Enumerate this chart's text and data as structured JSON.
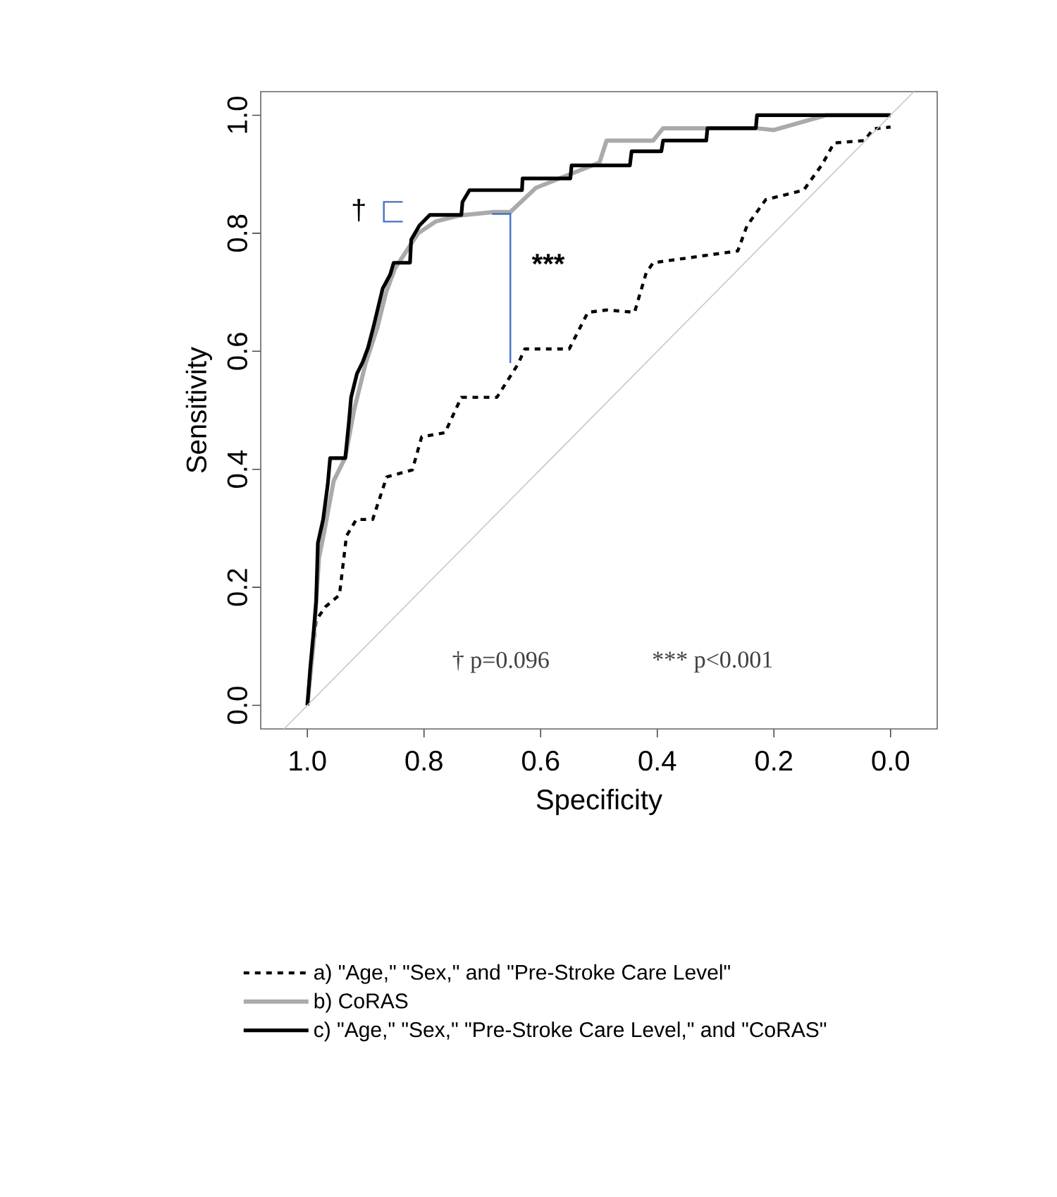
{
  "chart_data": {
    "type": "line",
    "xlabel": "Specificity",
    "ylabel": "Sensitivity",
    "xlim": [
      1.08,
      -0.08
    ],
    "ylim": [
      -0.04,
      1.04
    ],
    "xticks": [
      {
        "value": 1.0,
        "label": "1.0"
      },
      {
        "value": 0.8,
        "label": "0.8"
      },
      {
        "value": 0.6,
        "label": "0.6"
      },
      {
        "value": 0.4,
        "label": "0.4"
      },
      {
        "value": 0.2,
        "label": "0.2"
      },
      {
        "value": 0.0,
        "label": "0.0"
      }
    ],
    "yticks": [
      {
        "value": 0.0,
        "label": "0.0"
      },
      {
        "value": 0.2,
        "label": "0.2"
      },
      {
        "value": 0.4,
        "label": "0.4"
      },
      {
        "value": 0.6,
        "label": "0.6"
      },
      {
        "value": 0.8,
        "label": "0.8"
      },
      {
        "value": 1.0,
        "label": "1.0"
      }
    ],
    "grid": false,
    "legend": "bottom",
    "marker": "none",
    "series": [
      {
        "name": "a) \"Age,\" \"Sex,\" and \"Pre-Stroke Care Level\"",
        "color": "#000000",
        "line_style": "dotted",
        "x": [
          1.0,
          0.985,
          0.969,
          0.945,
          0.933,
          0.916,
          0.888,
          0.864,
          0.82,
          0.804,
          0.764,
          0.736,
          0.675,
          0.639,
          0.627,
          0.551,
          0.519,
          0.487,
          0.439,
          0.419,
          0.407,
          0.262,
          0.246,
          0.214,
          0.149,
          0.117,
          0.097,
          0.045,
          0.029,
          0.0
        ],
        "values": [
          0.0,
          0.144,
          0.167,
          0.187,
          0.287,
          0.315,
          0.315,
          0.387,
          0.399,
          0.455,
          0.462,
          0.522,
          0.522,
          0.578,
          0.604,
          0.604,
          0.666,
          0.67,
          0.666,
          0.733,
          0.75,
          0.77,
          0.813,
          0.857,
          0.873,
          0.917,
          0.953,
          0.957,
          0.977,
          0.98
        ]
      },
      {
        "name": "b)  CoRAS",
        "color": "#aaaaaa",
        "line_style": "solid",
        "x": [
          1.0,
          0.99,
          0.98,
          0.97,
          0.955,
          0.935,
          0.92,
          0.9,
          0.88,
          0.865,
          0.85,
          0.83,
          0.81,
          0.78,
          0.74,
          0.68,
          0.652,
          0.608,
          0.499,
          0.487,
          0.407,
          0.39,
          0.23,
          0.2,
          0.11,
          0.0
        ],
        "values": [
          0.0,
          0.1,
          0.25,
          0.3,
          0.38,
          0.42,
          0.5,
          0.58,
          0.64,
          0.7,
          0.74,
          0.77,
          0.8,
          0.82,
          0.83,
          0.836,
          0.836,
          0.877,
          0.92,
          0.957,
          0.957,
          0.978,
          0.978,
          0.975,
          1.0,
          1.0
        ]
      },
      {
        "name": "c) \"Age,\" \"Sex,\" \"Pre-Stroke Care Level,\" and \"CoRAS\"",
        "color": "#000000",
        "line_style": "solid",
        "x": [
          1.0,
          0.995,
          0.989,
          0.985,
          0.982,
          0.973,
          0.965,
          0.961,
          0.935,
          0.929,
          0.925,
          0.915,
          0.905,
          0.896,
          0.886,
          0.871,
          0.858,
          0.852,
          0.824,
          0.822,
          0.808,
          0.79,
          0.736,
          0.734,
          0.722,
          0.632,
          0.631,
          0.549,
          0.547,
          0.447,
          0.444,
          0.393,
          0.39,
          0.316,
          0.314,
          0.231,
          0.229,
          0.0
        ],
        "values": [
          0.0,
          0.064,
          0.128,
          0.175,
          0.275,
          0.315,
          0.375,
          0.419,
          0.419,
          0.478,
          0.522,
          0.562,
          0.582,
          0.606,
          0.644,
          0.706,
          0.73,
          0.75,
          0.75,
          0.789,
          0.813,
          0.831,
          0.831,
          0.853,
          0.873,
          0.873,
          0.893,
          0.893,
          0.915,
          0.915,
          0.939,
          0.939,
          0.957,
          0.957,
          0.978,
          0.978,
          1.0,
          1.0
        ]
      },
      {
        "color": "#c8c8c8",
        "line_style": "solid",
        "x": [
          1.04,
          -0.04
        ],
        "values": [
          -0.04,
          1.04
        ]
      }
    ],
    "annotations": [
      "†",
      "***",
      "† p=0.096",
      "*** p<0.001"
    ]
  }
}
